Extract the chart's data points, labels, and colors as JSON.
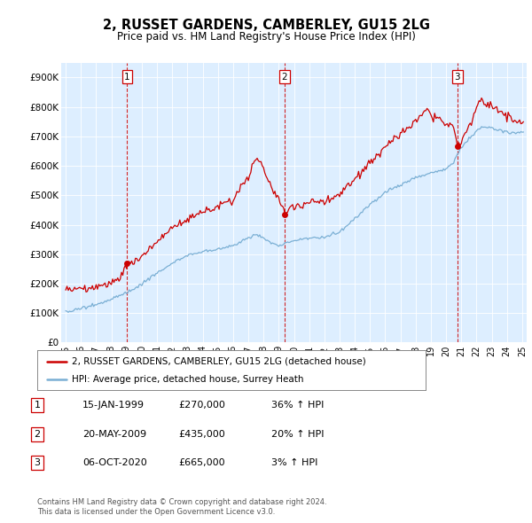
{
  "title": "2, RUSSET GARDENS, CAMBERLEY, GU15 2LG",
  "subtitle": "Price paid vs. HM Land Registry's House Price Index (HPI)",
  "legend_line1": "2, RUSSET GARDENS, CAMBERLEY, GU15 2LG (detached house)",
  "legend_line2": "HPI: Average price, detached house, Surrey Heath",
  "footnote1": "Contains HM Land Registry data © Crown copyright and database right 2024.",
  "footnote2": "This data is licensed under the Open Government Licence v3.0.",
  "transactions": [
    {
      "num": 1,
      "date": "15-JAN-1999",
      "price": 270000,
      "year": 1999.04,
      "pct": "36%",
      "dir": "↑"
    },
    {
      "num": 2,
      "date": "20-MAY-2009",
      "price": 435000,
      "year": 2009.38,
      "pct": "20%",
      "dir": "↑"
    },
    {
      "num": 3,
      "date": "06-OCT-2020",
      "price": 665000,
      "year": 2020.75,
      "pct": "3%",
      "dir": "↑"
    }
  ],
  "price_color": "#cc0000",
  "hpi_color": "#7aafd4",
  "background_color": "#ddeeff",
  "vline_color": "#cc0000",
  "ylim": [
    0,
    950000
  ],
  "yticks": [
    0,
    100000,
    200000,
    300000,
    400000,
    500000,
    600000,
    700000,
    800000,
    900000
  ],
  "ytick_labels": [
    "£0",
    "£100K",
    "£200K",
    "£300K",
    "£400K",
    "£500K",
    "£600K",
    "£700K",
    "£800K",
    "£900K"
  ],
  "xstart": 1995,
  "xend": 2025,
  "xtick_years": [
    1995,
    1996,
    1997,
    1998,
    1999,
    2000,
    2001,
    2002,
    2003,
    2004,
    2005,
    2006,
    2007,
    2008,
    2009,
    2010,
    2011,
    2012,
    2013,
    2014,
    2015,
    2016,
    2017,
    2018,
    2019,
    2020,
    2021,
    2022,
    2023,
    2024,
    2025
  ]
}
